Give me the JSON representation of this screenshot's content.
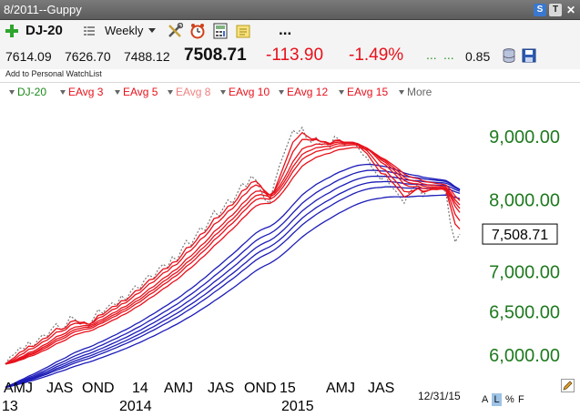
{
  "window": {
    "title": "8/2011--Guppy",
    "buttons": [
      "S",
      "T",
      "✕"
    ]
  },
  "toolbar": {
    "add_icon": "plus-icon",
    "symbol": "DJ-20",
    "period": "Weekly",
    "icons": [
      "tools-icon",
      "alarm-clock-icon",
      "calculator-icon",
      "note-icon"
    ],
    "more": "..."
  },
  "quote": {
    "open": "7614.09",
    "high": "7626.70",
    "low": "7488.12",
    "last": "7508.71",
    "change": "-113.90",
    "change_pct": "-1.49%",
    "dots": [
      "...",
      "..."
    ],
    "beta": "0.85",
    "watchlist_link": "Add to Personal WatchList"
  },
  "legend": [
    {
      "label": "DJ-20",
      "color": "#1a8a1a"
    },
    {
      "label": "EAvg 3",
      "color": "#e8111b"
    },
    {
      "label": "EAvg 5",
      "color": "#e8111b"
    },
    {
      "label": "EAvg 8",
      "color": "#f08080"
    },
    {
      "label": "EAvg 10",
      "color": "#e8111b"
    },
    {
      "label": "EAvg 12",
      "color": "#e8111b"
    },
    {
      "label": "EAvg 15",
      "color": "#e8111b"
    },
    {
      "label": "More",
      "color": "#666666"
    }
  ],
  "chart_data": {
    "type": "line",
    "y_scale": "log",
    "ylim": [
      5800,
      9400
    ],
    "y_ticks": [
      "9,000.00",
      "8,000.00",
      "7,000.00",
      "6,500.00",
      "6,000.00"
    ],
    "y_tick_values": [
      9000,
      8000,
      7000,
      6500,
      6000
    ],
    "y_tick_color": "#1f7a1f",
    "last_value_label": "7,508.71",
    "x_month_labels": [
      "AMJ",
      "JAS",
      "OND",
      "14",
      "AMJ",
      "JAS",
      "OND",
      "15",
      "AMJ",
      "JAS"
    ],
    "x_year_labels": [
      "13",
      "2014",
      "2015"
    ],
    "date": "12/31/15",
    "price_color": "#777777",
    "short_avg_color": "#e8111b",
    "long_avg_color": "#1c1cb8",
    "price_weekly": [
      5900,
      5980,
      6010,
      6080,
      6070,
      6150,
      6090,
      6170,
      6230,
      6210,
      6300,
      6360,
      6280,
      6330,
      6450,
      6410,
      6350,
      6380,
      6320,
      6420,
      6530,
      6480,
      6560,
      6610,
      6580,
      6700,
      6640,
      6750,
      6820,
      6780,
      6900,
      6960,
      6920,
      7040,
      7100,
      7060,
      7200,
      7150,
      7300,
      7420,
      7350,
      7480,
      7600,
      7560,
      7700,
      7840,
      7760,
      7880,
      8000,
      7950,
      8100,
      8250,
      8200,
      8360,
      8300,
      8150,
      8000,
      7950,
      8250,
      8500,
      8700,
      8900,
      9100,
      9050,
      9150,
      8950,
      8900,
      8980,
      8850,
      8900,
      8820,
      9000,
      8950,
      8850,
      8900,
      8900,
      8820,
      8700,
      8650,
      8500,
      8400,
      8300,
      8380,
      8200,
      8150,
      8050,
      7950,
      8100,
      8180,
      8230,
      8050,
      8150,
      8200,
      8150,
      8180,
      8120,
      7650,
      7400,
      7508.71
    ],
    "series": [
      {
        "name": "EAvg 3",
        "group": "short",
        "period": 3
      },
      {
        "name": "EAvg 5",
        "group": "short",
        "period": 5
      },
      {
        "name": "EAvg 8",
        "group": "short",
        "period": 8
      },
      {
        "name": "EAvg 10",
        "group": "short",
        "period": 10
      },
      {
        "name": "EAvg 12",
        "group": "short",
        "period": 12
      },
      {
        "name": "EAvg 15",
        "group": "short",
        "period": 15
      },
      {
        "name": "",
        "group": "long",
        "period": 30
      },
      {
        "name": "",
        "group": "long",
        "period": 35
      },
      {
        "name": "",
        "group": "long",
        "period": 40
      },
      {
        "name": "",
        "group": "long",
        "period": 45
      },
      {
        "name": "",
        "group": "long",
        "period": 50
      },
      {
        "name": "",
        "group": "long",
        "period": 60
      }
    ]
  },
  "bottom_controls": {
    "scale_options": [
      "A",
      "L",
      "%",
      "F"
    ],
    "selected_scale": "L",
    "edit_icon": "pencil-icon"
  }
}
